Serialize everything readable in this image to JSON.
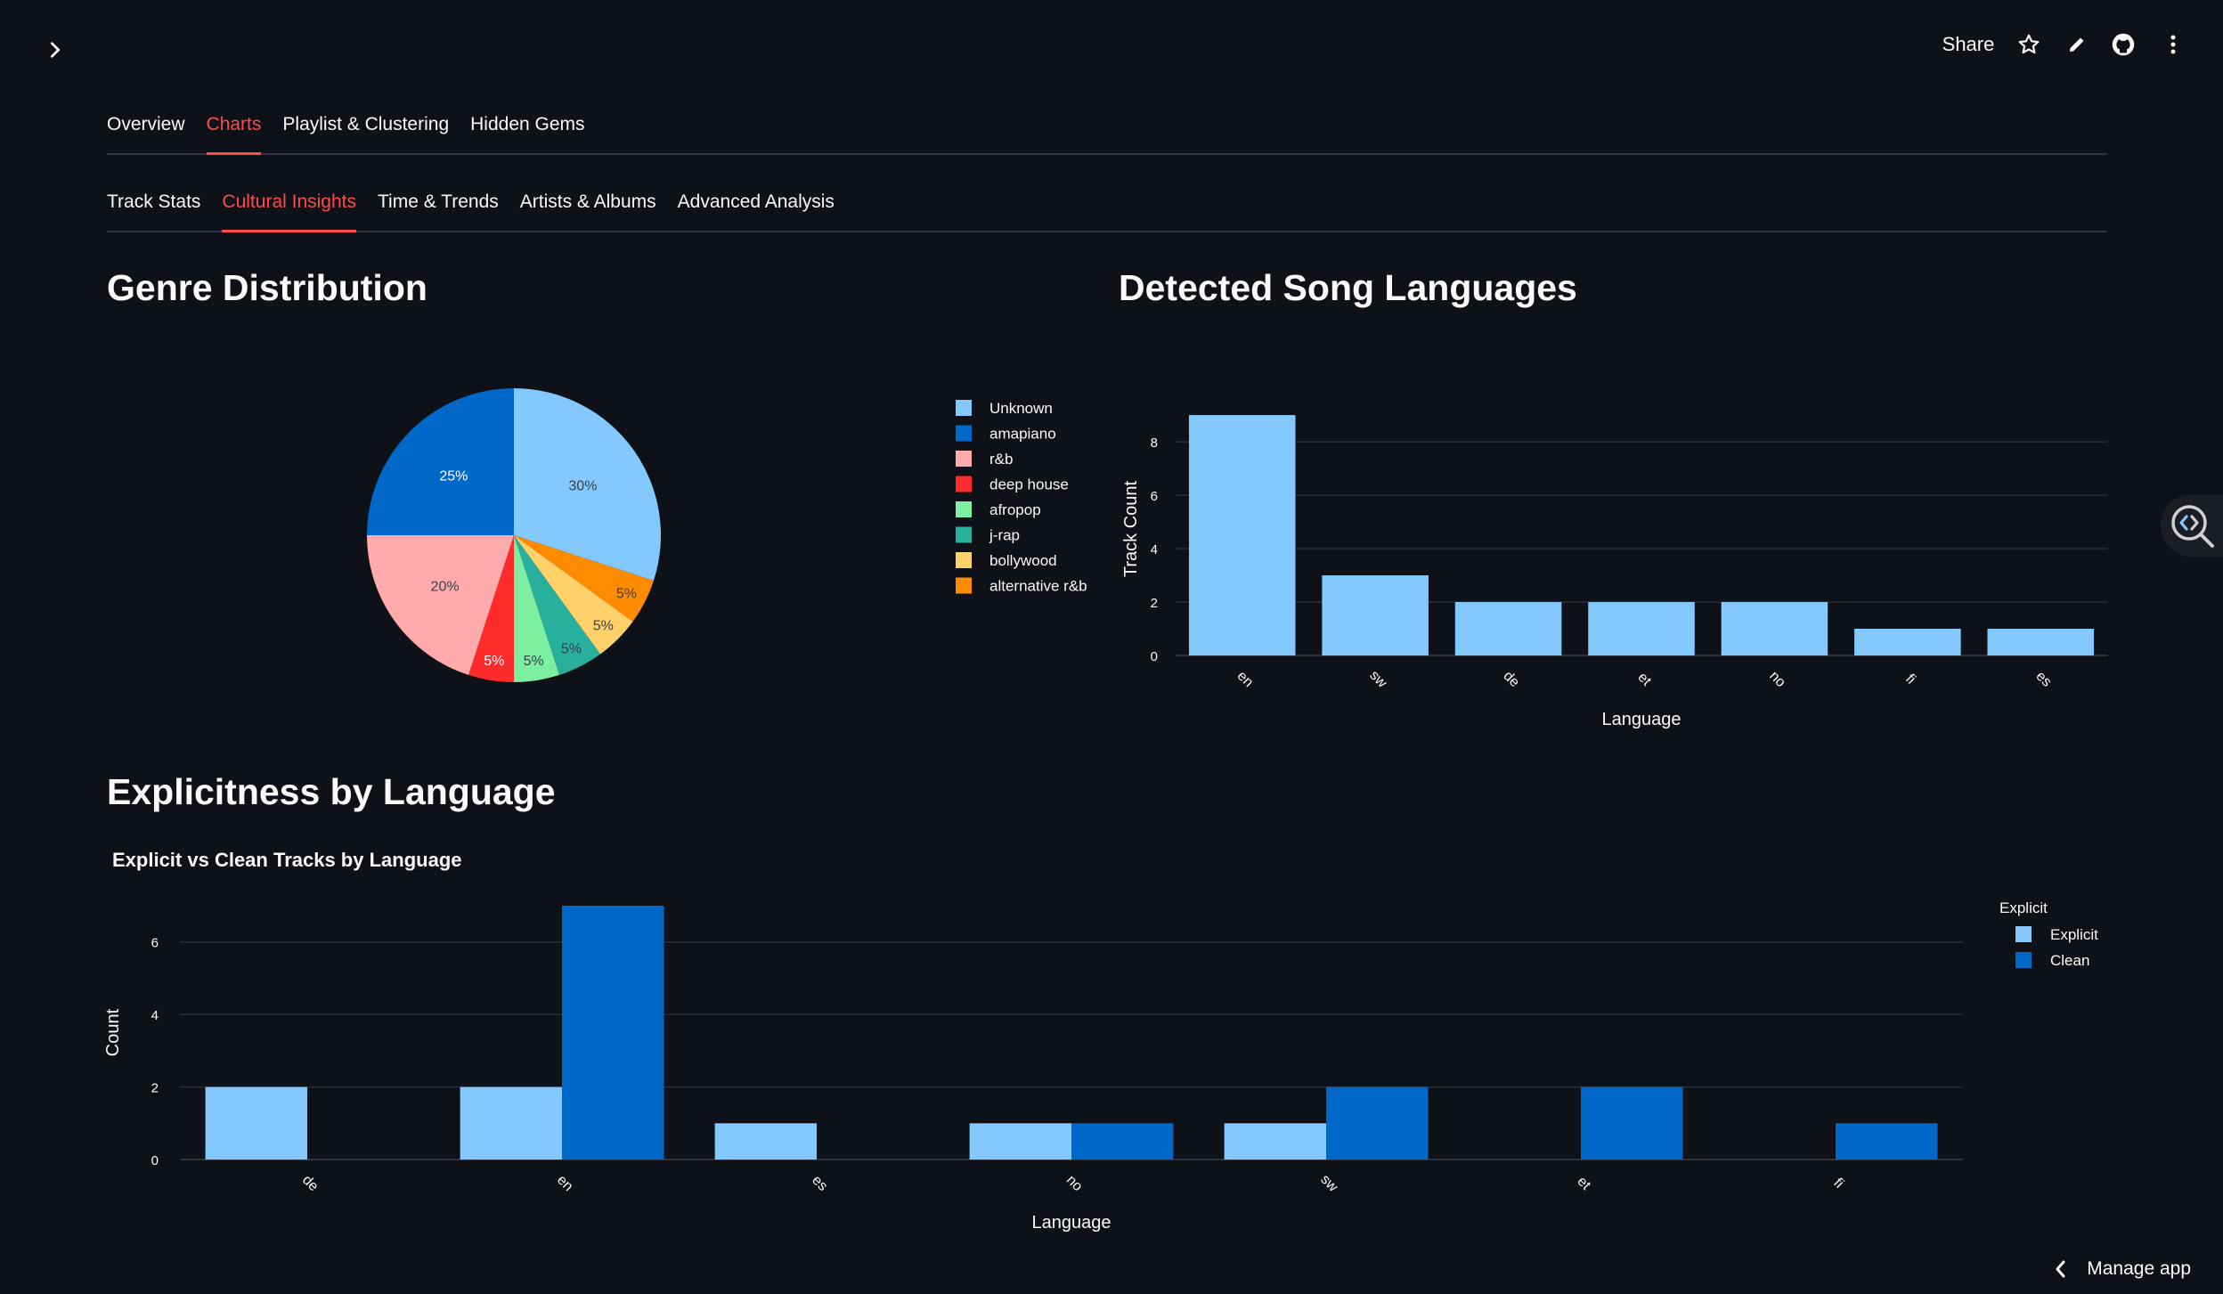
{
  "header": {
    "share_label": "Share",
    "icons": [
      "sidebar-expand-icon",
      "star-icon",
      "edit-icon",
      "github-icon",
      "more-icon"
    ]
  },
  "main_tabs": [
    {
      "label": "Overview",
      "active": false
    },
    {
      "label": "Charts",
      "active": true
    },
    {
      "label": "Playlist & Clustering",
      "active": false
    },
    {
      "label": "Hidden Gems",
      "active": false
    }
  ],
  "sub_tabs": [
    {
      "label": "Track Stats",
      "active": false
    },
    {
      "label": "Cultural Insights",
      "active": true
    },
    {
      "label": "Time & Trends",
      "active": false
    },
    {
      "label": "Artists & Albums",
      "active": false
    },
    {
      "label": "Advanced Analysis",
      "active": false
    }
  ],
  "sections": {
    "genre_title": "Genre Distribution",
    "languages_title": "Detected Song Languages",
    "explicit_title": "Explicitness by Language"
  },
  "colors": {
    "background": "#0e1117",
    "accent": "#ff4b4b",
    "light_blue": "#83c9ff",
    "dark_blue": "#0068c9"
  },
  "footer": {
    "manage_label": "Manage app"
  },
  "chart_data": [
    {
      "id": "genre",
      "type": "pie",
      "title": "Genre Distribution",
      "slices": [
        {
          "label": "Unknown",
          "value": 30,
          "text": "30%",
          "color": "#83c9ff",
          "text_color": "#3a3f4b"
        },
        {
          "label": "alternative r&b",
          "value": 5,
          "text": "5%",
          "color": "#ff8c00",
          "text_color": "#3a3f4b"
        },
        {
          "label": "bollywood",
          "value": 5,
          "text": "5%",
          "color": "#ffd16a",
          "text_color": "#3a3f4b"
        },
        {
          "label": "j-rap",
          "value": 5,
          "text": "5%",
          "color": "#29b09d",
          "text_color": "#3a3f4b"
        },
        {
          "label": "afropop",
          "value": 5,
          "text": "5%",
          "color": "#7defa1",
          "text_color": "#3a3f4b"
        },
        {
          "label": "deep house",
          "value": 5,
          "text": "5%",
          "color": "#ff2b2b",
          "text_color": "#ffffff"
        },
        {
          "label": "r&b",
          "value": 20,
          "text": "20%",
          "color": "#ffabab",
          "text_color": "#3a3f4b"
        },
        {
          "label": "amapiano",
          "value": 25,
          "text": "25%",
          "color": "#0068c9",
          "text_color": "#ffffff"
        }
      ],
      "legend": [
        "Unknown",
        "amapiano",
        "r&b",
        "deep house",
        "afropop",
        "j-rap",
        "bollywood",
        "alternative r&b"
      ],
      "legend_colors": [
        "#83c9ff",
        "#0068c9",
        "#ffabab",
        "#ff2b2b",
        "#7defa1",
        "#29b09d",
        "#ffd16a",
        "#ff8c00"
      ]
    },
    {
      "id": "languages",
      "type": "bar",
      "title": "Detected Song Languages",
      "categories": [
        "en",
        "sw",
        "de",
        "et",
        "no",
        "fi",
        "es"
      ],
      "values": [
        9,
        3,
        2,
        2,
        2,
        1,
        1
      ],
      "xlabel": "Language",
      "ylabel": "Track Count",
      "ylim": [
        0,
        9.47
      ],
      "yticks": [
        0,
        2,
        4,
        6,
        8
      ],
      "color": "#83c9ff"
    },
    {
      "id": "explicit",
      "type": "bar",
      "title": "Explicit vs Clean Tracks by Language",
      "categories": [
        "de",
        "en",
        "es",
        "no",
        "sw",
        "et",
        "fi"
      ],
      "series": [
        {
          "name": "Explicit",
          "values": [
            2,
            2,
            1,
            1,
            1,
            0,
            0
          ],
          "color": "#83c9ff"
        },
        {
          "name": "Clean",
          "values": [
            0,
            7,
            0,
            1,
            2,
            2,
            1
          ],
          "color": "#0068c9"
        }
      ],
      "xlabel": "Language",
      "ylabel": "Count",
      "legend_title": "Explicit",
      "ylim": [
        0,
        7
      ],
      "yticks": [
        0,
        2,
        4,
        6
      ]
    }
  ]
}
